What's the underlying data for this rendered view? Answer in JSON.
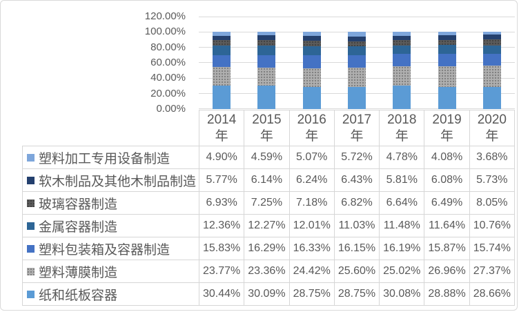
{
  "chart_data": {
    "type": "bar",
    "stacked": true,
    "percent_stacked": true,
    "title": "",
    "categories": [
      "2014",
      "2015",
      "2016",
      "2017",
      "2018",
      "2019",
      "2020"
    ],
    "category_unit": "年",
    "value_format": "percent-2dp",
    "grid": true,
    "legend_position": "table-left-column",
    "y_axis": {
      "min": 0,
      "max": 120,
      "step": 20,
      "tick_labels": [
        "120.00%",
        "100.00%",
        "80.00%",
        "60.00%",
        "40.00%",
        "20.00%",
        "0.00%"
      ]
    },
    "series": [
      {
        "name": "塑料加工专用设备制造",
        "color": "#7EA6DB",
        "pattern": "solid",
        "values": [
          4.9,
          4.59,
          5.07,
          5.72,
          4.78,
          4.08,
          3.68
        ]
      },
      {
        "name": "软木制品及其他木制品制造",
        "color": "#24406E",
        "pattern": "solid",
        "values": [
          5.77,
          6.14,
          6.24,
          6.43,
          5.81,
          6.08,
          5.73
        ]
      },
      {
        "name": "玻璃容器制造",
        "color": "#5B5B5B",
        "pattern": "dots",
        "values": [
          6.93,
          7.25,
          7.18,
          6.82,
          6.64,
          6.49,
          8.05
        ]
      },
      {
        "name": "金属容器制造",
        "color": "#2D6596",
        "pattern": "solid",
        "values": [
          12.36,
          12.27,
          12.01,
          11.03,
          11.48,
          11.64,
          10.76
        ]
      },
      {
        "name": "塑料包装箱及容器制造",
        "color": "#4472C4",
        "pattern": "solid",
        "values": [
          15.83,
          16.29,
          16.33,
          16.15,
          16.19,
          15.87,
          15.74
        ]
      },
      {
        "name": "塑料薄膜制造",
        "color": "#AFAFAF",
        "pattern": "dots",
        "values": [
          23.77,
          23.36,
          24.42,
          25.6,
          25.02,
          26.96,
          27.37
        ]
      },
      {
        "name": "纸和纸板容器",
        "color": "#5B9BD5",
        "pattern": "solid",
        "values": [
          30.44,
          30.09,
          28.75,
          28.75,
          30.08,
          28.88,
          28.66
        ]
      }
    ],
    "colors": {
      "gridline": "#d9d9d9",
      "table_border": "#d6d6d6",
      "text": "#595959",
      "background": "#ffffff"
    }
  }
}
